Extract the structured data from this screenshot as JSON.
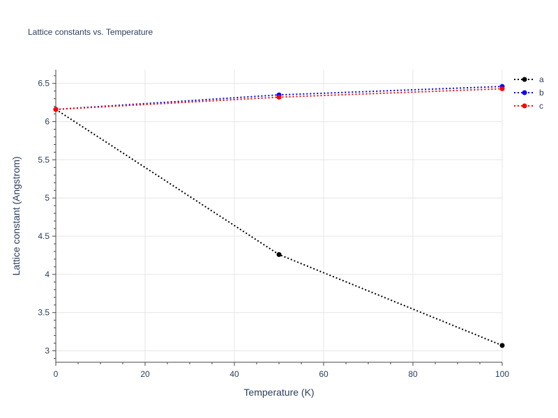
{
  "chart_data": {
    "type": "line",
    "title": "Lattice constants vs. Temperature",
    "xlabel": "Temperature (K)",
    "ylabel": "Lattice constant (Angstrom)",
    "xlim": [
      0,
      100
    ],
    "ylim": [
      2.85,
      6.68
    ],
    "xticks": [
      0,
      20,
      40,
      60,
      80,
      100
    ],
    "yticks": [
      3,
      3.5,
      4,
      4.5,
      5,
      5.5,
      6,
      6.5
    ],
    "grid": true,
    "legend_position": "top-right",
    "x": [
      0,
      50,
      100
    ],
    "series": [
      {
        "name": "a",
        "color": "#000000",
        "values": [
          6.16,
          4.26,
          3.07
        ]
      },
      {
        "name": "b",
        "color": "#0000ff",
        "values": [
          6.16,
          6.35,
          6.46
        ]
      },
      {
        "name": "c",
        "color": "#ff0000",
        "values": [
          6.16,
          6.32,
          6.43
        ]
      }
    ]
  }
}
